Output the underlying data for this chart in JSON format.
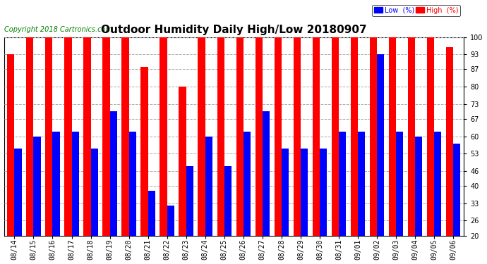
{
  "title": "Outdoor Humidity Daily High/Low 20180907",
  "copyright": "Copyright 2018 Cartronics.com",
  "dates": [
    "08/14",
    "08/15",
    "08/16",
    "08/17",
    "08/18",
    "08/19",
    "08/20",
    "08/21",
    "08/22",
    "08/23",
    "08/24",
    "08/25",
    "08/26",
    "08/27",
    "08/28",
    "08/29",
    "08/30",
    "08/31",
    "09/01",
    "09/02",
    "09/03",
    "09/04",
    "09/05",
    "09/06"
  ],
  "high": [
    93,
    100,
    100,
    100,
    100,
    100,
    100,
    88,
    100,
    80,
    100,
    100,
    100,
    100,
    100,
    100,
    100,
    100,
    100,
    100,
    100,
    100,
    100,
    96
  ],
  "low": [
    55,
    60,
    62,
    62,
    55,
    70,
    62,
    38,
    32,
    48,
    60,
    48,
    62,
    70,
    55,
    55,
    55,
    62,
    62,
    93,
    62,
    60,
    62,
    57
  ],
  "ylim": [
    20,
    100
  ],
  "yticks": [
    20,
    26,
    33,
    40,
    46,
    53,
    60,
    67,
    73,
    80,
    87,
    93,
    100
  ],
  "high_color": "#ff0000",
  "low_color": "#0000ff",
  "bg_color": "#ffffff",
  "legend_low_label": "Low  (%)",
  "legend_high_label": "High  (%)",
  "bar_width": 0.38,
  "grid_color": "#aaaaaa",
  "title_fontsize": 11,
  "tick_fontsize": 7,
  "copyright_fontsize": 7
}
